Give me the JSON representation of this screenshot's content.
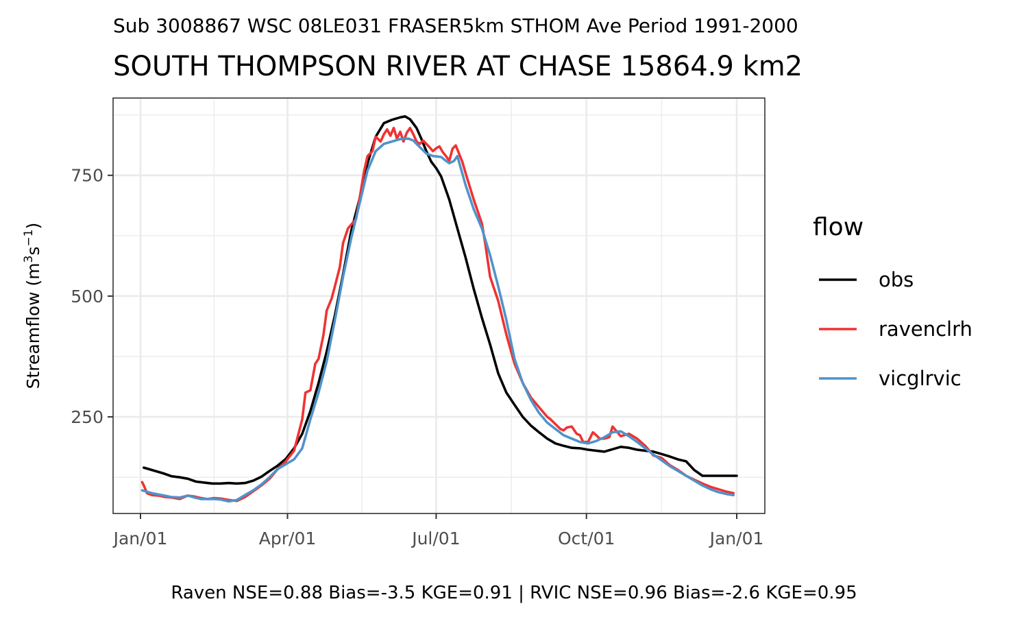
{
  "chart_data": {
    "type": "line",
    "subtitle": "Sub 3008867 WSC 08LE031 FRASER5km STHOM Ave Period 1991-2000",
    "title": "SOUTH THOMPSON RIVER AT CHASE 15864.9 km2",
    "ylabel": "Streamflow (m³s⁻¹)",
    "ylabel_main": "Streamflow (m",
    "ylabel_sup1": "3",
    "ylabel_mid": "s",
    "ylabel_sup2": "−1",
    "ylabel_end": ")",
    "xlabel": "",
    "xlim": [
      1,
      366
    ],
    "ylim": [
      50,
      910
    ],
    "x_unit": "day of year",
    "x_ticks": [
      {
        "label": "Jan/01",
        "x": 1
      },
      {
        "label": "Apr/01",
        "x": 91
      },
      {
        "label": "Jul/01",
        "x": 182
      },
      {
        "label": "Oct/01",
        "x": 274
      },
      {
        "label": "Jan/01",
        "x": 366
      }
    ],
    "y_ticks": [
      250,
      500,
      750
    ],
    "grid": true,
    "legend": {
      "title": "flow",
      "position": "right"
    },
    "caption": "Raven NSE=0.88 Bias=-3.5 KGE=0.91 | RVIC NSE=0.96 Bias=-2.6 KGE=0.95",
    "series": [
      {
        "name": "obs",
        "color": "#000000",
        "x": [
          3,
          10,
          15,
          20,
          25,
          30,
          35,
          40,
          45,
          50,
          55,
          60,
          65,
          70,
          75,
          80,
          85,
          90,
          95,
          100,
          105,
          110,
          115,
          120,
          125,
          130,
          135,
          140,
          145,
          150,
          155,
          160,
          163,
          166,
          170,
          173,
          176,
          179,
          182,
          185,
          190,
          195,
          200,
          205,
          210,
          215,
          220,
          225,
          230,
          235,
          240,
          245,
          250,
          255,
          260,
          265,
          270,
          275,
          280,
          285,
          290,
          295,
          300,
          305,
          310,
          315,
          320,
          325,
          330,
          335,
          340,
          345,
          350,
          355,
          360,
          364,
          366
        ],
        "y": [
          145,
          138,
          133,
          127,
          125,
          122,
          116,
          114,
          112,
          112,
          113,
          112,
          113,
          118,
          126,
          138,
          149,
          163,
          185,
          215,
          262,
          320,
          385,
          460,
          545,
          635,
          700,
          775,
          830,
          858,
          865,
          870,
          872,
          866,
          848,
          825,
          800,
          778,
          765,
          748,
          700,
          640,
          580,
          515,
          455,
          400,
          340,
          300,
          275,
          250,
          232,
          218,
          205,
          195,
          190,
          186,
          185,
          182,
          180,
          178,
          183,
          188,
          186,
          182,
          180,
          178,
          173,
          168,
          162,
          158,
          140,
          128,
          128,
          128,
          128,
          128,
          128
        ]
      },
      {
        "name": "ravenclrh",
        "color": "#f03232",
        "x": [
          2,
          3,
          5,
          8,
          12,
          16,
          20,
          25,
          30,
          34,
          38,
          42,
          46,
          50,
          55,
          60,
          65,
          70,
          75,
          80,
          85,
          90,
          95,
          100,
          102,
          105,
          108,
          110,
          113,
          115,
          118,
          120,
          123,
          125,
          128,
          130,
          133,
          135,
          138,
          140,
          143,
          145,
          148,
          150,
          152,
          154,
          156,
          158,
          160,
          162,
          164,
          166,
          168,
          170,
          172,
          174,
          176,
          178,
          180,
          182,
          184,
          186,
          188,
          190,
          192,
          194,
          196,
          198,
          200,
          205,
          210,
          212,
          215,
          220,
          225,
          230,
          235,
          240,
          245,
          250,
          252,
          255,
          258,
          260,
          262,
          265,
          268,
          270,
          272,
          275,
          278,
          280,
          282,
          285,
          288,
          290,
          295,
          300,
          305,
          310,
          315,
          320,
          325,
          330,
          335,
          340,
          345,
          350,
          355,
          360,
          364
        ],
        "y": [
          115,
          108,
          92,
          88,
          87,
          84,
          83,
          80,
          87,
          85,
          82,
          80,
          82,
          81,
          78,
          76,
          84,
          96,
          108,
          122,
          142,
          158,
          180,
          245,
          300,
          305,
          360,
          370,
          420,
          470,
          495,
          520,
          560,
          610,
          640,
          648,
          660,
          700,
          760,
          790,
          800,
          830,
          820,
          835,
          845,
          832,
          848,
          826,
          840,
          820,
          838,
          848,
          835,
          820,
          815,
          822,
          815,
          808,
          800,
          806,
          810,
          798,
          790,
          780,
          805,
          812,
          795,
          778,
          755,
          700,
          650,
          610,
          540,
          490,
          420,
          360,
          320,
          290,
          270,
          250,
          245,
          235,
          225,
          222,
          228,
          230,
          215,
          212,
          198,
          198,
          218,
          212,
          205,
          205,
          208,
          230,
          210,
          215,
          205,
          190,
          170,
          165,
          150,
          140,
          128,
          120,
          112,
          105,
          100,
          95,
          92
        ]
      },
      {
        "name": "vicglrvic",
        "color": "#4f93ca",
        "x": [
          2,
          8,
          14,
          20,
          25,
          30,
          34,
          38,
          42,
          46,
          50,
          55,
          60,
          65,
          70,
          75,
          80,
          85,
          90,
          95,
          100,
          105,
          110,
          115,
          120,
          125,
          130,
          135,
          140,
          145,
          150,
          155,
          160,
          165,
          168,
          170,
          173,
          176,
          180,
          185,
          188,
          190,
          193,
          195,
          200,
          205,
          210,
          215,
          220,
          225,
          230,
          235,
          240,
          245,
          250,
          255,
          260,
          265,
          270,
          275,
          280,
          285,
          290,
          295,
          300,
          305,
          310,
          315,
          320,
          325,
          330,
          335,
          340,
          345,
          350,
          355,
          360,
          364
        ],
        "y": [
          98,
          92,
          88,
          84,
          83,
          87,
          83,
          80,
          80,
          80,
          79,
          75,
          78,
          88,
          98,
          110,
          125,
          142,
          152,
          162,
          185,
          245,
          300,
          365,
          450,
          540,
          620,
          690,
          760,
          800,
          815,
          820,
          825,
          826,
          822,
          815,
          805,
          795,
          790,
          788,
          780,
          775,
          780,
          790,
          730,
          680,
          640,
          585,
          520,
          450,
          370,
          320,
          285,
          258,
          238,
          225,
          212,
          205,
          198,
          195,
          200,
          208,
          218,
          220,
          210,
          198,
          185,
          172,
          160,
          148,
          138,
          128,
          118,
          108,
          100,
          94,
          90,
          88
        ]
      }
    ]
  }
}
